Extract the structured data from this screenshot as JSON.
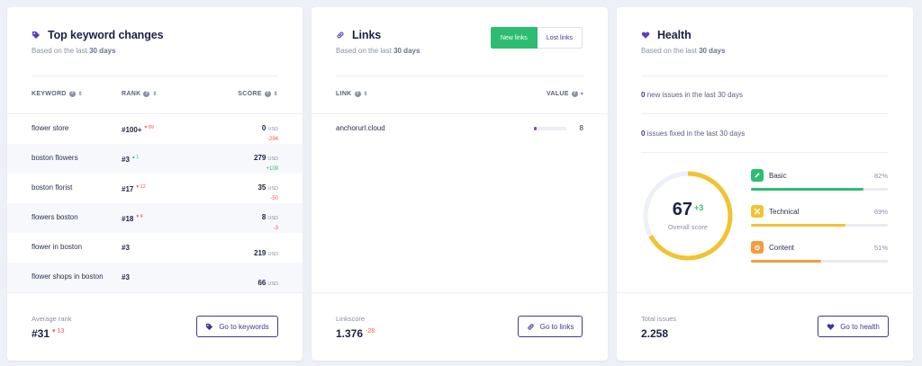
{
  "keywords": {
    "title": "Top keyword changes",
    "subtitle_prefix": "Based on the last",
    "subtitle_period": "30 days",
    "columns": {
      "keyword": "KEYWORD",
      "rank": "RANK",
      "score": "SCORE"
    },
    "rows": [
      {
        "keyword": "flower store",
        "rank": "#100+",
        "delta": "89",
        "dir": "down",
        "score": "0",
        "unit": "USD",
        "score_delta": "-294",
        "score_dir": "down"
      },
      {
        "keyword": "boston flowers",
        "rank": "#3",
        "delta": "1",
        "dir": "up",
        "score": "279",
        "unit": "USD",
        "score_delta": "+109",
        "score_dir": "up"
      },
      {
        "keyword": "boston florist",
        "rank": "#17",
        "delta": "12",
        "dir": "down",
        "score": "35",
        "unit": "USD",
        "score_delta": "-50",
        "score_dir": "down"
      },
      {
        "keyword": "flowers boston",
        "rank": "#18",
        "delta": "4",
        "dir": "down",
        "score": "8",
        "unit": "USD",
        "score_delta": "-3",
        "score_dir": "down"
      },
      {
        "keyword": "flower in boston",
        "rank": "#3",
        "delta": "",
        "dir": "",
        "score": "219",
        "unit": "USD",
        "score_delta": "",
        "score_dir": ""
      },
      {
        "keyword": "flower shops in boston",
        "rank": "#3",
        "delta": "",
        "dir": "",
        "score": "66",
        "unit": "USD",
        "score_delta": "",
        "score_dir": ""
      }
    ],
    "footer_label": "Average rank",
    "footer_value": "#31",
    "footer_delta": "13",
    "button": "Go to keywords"
  },
  "links": {
    "title": "Links",
    "subtitle_prefix": "Based on the last",
    "subtitle_period": "30 days",
    "toggle_new": "New links",
    "toggle_lost": "Lost links",
    "columns": {
      "link": "LINK",
      "value": "VALUE"
    },
    "rows": [
      {
        "link": "anchorurl.cloud",
        "value": "8",
        "fill": 0.08
      }
    ],
    "footer_label": "Linkscore",
    "footer_value": "1.376",
    "footer_delta": "-28",
    "button": "Go to links"
  },
  "health": {
    "title": "Health",
    "subtitle_prefix": "Based on the last",
    "subtitle_period": "30 days",
    "new_issues_count": "0",
    "new_issues_text": "new issues in the last 30 days",
    "fixed_issues_count": "0",
    "fixed_issues_text": "issues fixed in the last 30 days",
    "score": "67",
    "score_delta": "+3",
    "score_label": "Overall score",
    "score_fraction": 0.67,
    "categories": [
      {
        "name": "Basic",
        "pct": "82%",
        "value": 0.82,
        "color": "#2dbd71",
        "icon": "pencil-icon"
      },
      {
        "name": "Technical",
        "pct": "69%",
        "value": 0.69,
        "color": "#f2c233",
        "icon": "tools-icon"
      },
      {
        "name": "Content",
        "pct": "51%",
        "value": 0.51,
        "color": "#f59b3d",
        "icon": "content-icon"
      }
    ],
    "footer_label": "Total issues",
    "footer_value": "2.258",
    "button": "Go to health"
  },
  "colors": {
    "accent": "#3f3a8c",
    "green": "#2dbd71",
    "red": "#f05454",
    "yellow": "#f2c233",
    "orange": "#f59b3d",
    "purple": "#5b3cc4"
  }
}
